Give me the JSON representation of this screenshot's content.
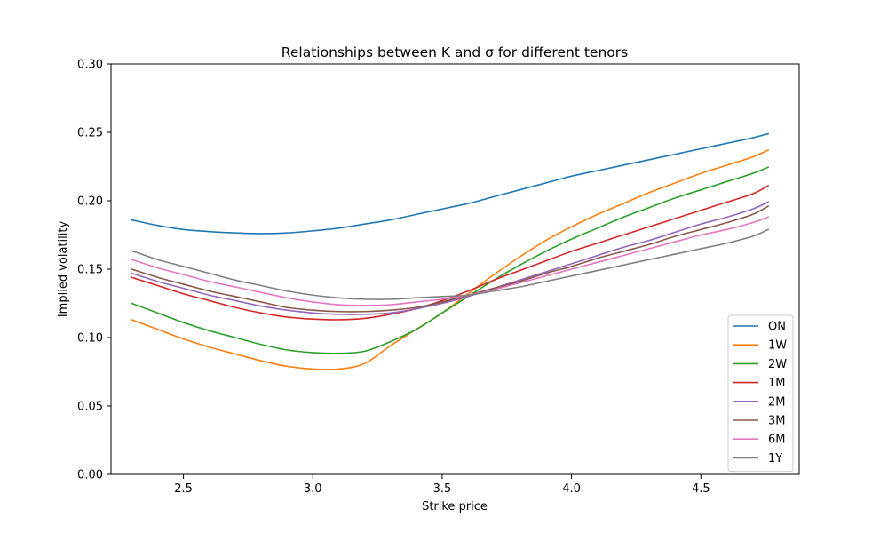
{
  "chart_data": {
    "type": "line",
    "title": "Relationships between K and σ for different tenors",
    "xlabel": "Strike price",
    "ylabel": "Implied volatility",
    "xlim": [
      2.22,
      4.88
    ],
    "ylim": [
      0.0,
      0.3
    ],
    "xticks": [
      "2.5",
      "3.0",
      "3.5",
      "4.0",
      "4.5"
    ],
    "yticks": [
      "0.00",
      "0.05",
      "0.10",
      "0.15",
      "0.20",
      "0.25",
      "0.30"
    ],
    "grid": false,
    "legend_position": "lower-right",
    "x": [
      2.3,
      2.4,
      2.5,
      2.6,
      2.7,
      2.8,
      2.9,
      3.0,
      3.1,
      3.2,
      3.3,
      3.4,
      3.5,
      3.6,
      3.7,
      3.8,
      3.9,
      4.0,
      4.1,
      4.2,
      4.3,
      4.4,
      4.5,
      4.6,
      4.7,
      4.76
    ],
    "series": [
      {
        "name": "ON",
        "color": "#1f77b4",
        "values": [
          0.186,
          0.182,
          0.179,
          0.1775,
          0.1765,
          0.176,
          0.1765,
          0.178,
          0.18,
          0.183,
          0.186,
          0.19,
          0.194,
          0.198,
          0.203,
          0.208,
          0.213,
          0.218,
          0.222,
          0.226,
          0.23,
          0.234,
          0.238,
          0.242,
          0.246,
          0.249
        ]
      },
      {
        "name": "1W",
        "color": "#ff7f0e",
        "values": [
          0.113,
          0.106,
          0.099,
          0.093,
          0.088,
          0.083,
          0.079,
          0.077,
          0.077,
          0.081,
          0.094,
          0.106,
          0.118,
          0.132,
          0.146,
          0.159,
          0.171,
          0.181,
          0.19,
          0.198,
          0.206,
          0.213,
          0.22,
          0.226,
          0.232,
          0.237
        ]
      },
      {
        "name": "2W",
        "color": "#2ca02c",
        "values": [
          0.125,
          0.118,
          0.111,
          0.105,
          0.1,
          0.095,
          0.091,
          0.089,
          0.0885,
          0.09,
          0.097,
          0.106,
          0.118,
          0.13,
          0.142,
          0.153,
          0.163,
          0.172,
          0.18,
          0.188,
          0.195,
          0.202,
          0.208,
          0.214,
          0.22,
          0.2245
        ]
      },
      {
        "name": "1M",
        "color": "#d62728",
        "values": [
          0.144,
          0.138,
          0.132,
          0.127,
          0.122,
          0.118,
          0.115,
          0.1135,
          0.113,
          0.114,
          0.117,
          0.121,
          0.127,
          0.134,
          0.142,
          0.149,
          0.156,
          0.163,
          0.169,
          0.175,
          0.181,
          0.187,
          0.193,
          0.199,
          0.205,
          0.211
        ]
      },
      {
        "name": "2M",
        "color": "#9467bd",
        "values": [
          0.147,
          0.141,
          0.136,
          0.131,
          0.127,
          0.123,
          0.12,
          0.118,
          0.117,
          0.117,
          0.118,
          0.121,
          0.125,
          0.13,
          0.136,
          0.142,
          0.148,
          0.154,
          0.16,
          0.166,
          0.171,
          0.177,
          0.183,
          0.188,
          0.194,
          0.199
        ]
      },
      {
        "name": "3M",
        "color": "#8c564b",
        "values": [
          0.15,
          0.144,
          0.139,
          0.134,
          0.13,
          0.126,
          0.122,
          0.12,
          0.119,
          0.119,
          0.12,
          0.122,
          0.126,
          0.131,
          0.136,
          0.141,
          0.147,
          0.152,
          0.158,
          0.163,
          0.168,
          0.174,
          0.179,
          0.184,
          0.19,
          0.196
        ]
      },
      {
        "name": "6M",
        "color": "#e377c2",
        "values": [
          0.157,
          0.151,
          0.146,
          0.141,
          0.137,
          0.133,
          0.129,
          0.126,
          0.124,
          0.1235,
          0.124,
          0.126,
          0.128,
          0.131,
          0.135,
          0.14,
          0.145,
          0.15,
          0.155,
          0.16,
          0.165,
          0.17,
          0.175,
          0.179,
          0.184,
          0.188
        ]
      },
      {
        "name": "1Y",
        "color": "#7f7f7f",
        "values": [
          0.1635,
          0.157,
          0.152,
          0.147,
          0.142,
          0.138,
          0.134,
          0.131,
          0.129,
          0.128,
          0.128,
          0.129,
          0.13,
          0.131,
          0.134,
          0.137,
          0.141,
          0.145,
          0.149,
          0.153,
          0.157,
          0.161,
          0.165,
          0.169,
          0.174,
          0.179
        ]
      }
    ]
  }
}
